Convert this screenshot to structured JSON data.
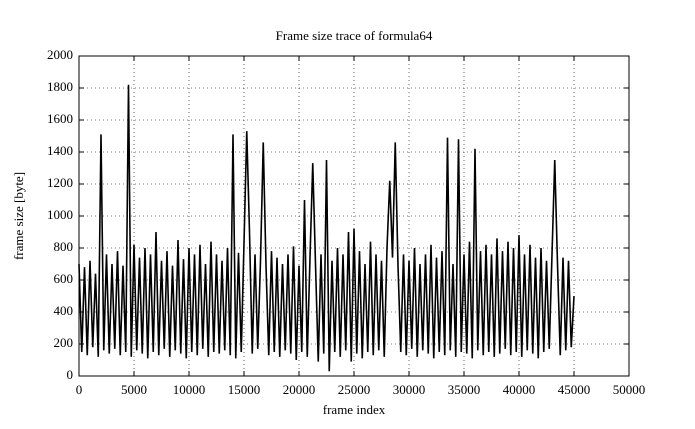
{
  "chart_data": {
    "type": "line",
    "title": "Frame size trace of formula64",
    "x_label": "frame index",
    "y_label": "frame size [byte]",
    "xlim": [
      0,
      50000
    ],
    "ylim": [
      0,
      2000
    ],
    "xticks": [
      0,
      5000,
      10000,
      15000,
      20000,
      25000,
      30000,
      35000,
      40000,
      45000,
      50000
    ],
    "yticks": [
      0,
      200,
      400,
      600,
      800,
      1000,
      1200,
      1400,
      1600,
      1800,
      2000
    ],
    "grid": true,
    "x": [
      0,
      250,
      500,
      750,
      1000,
      1250,
      1500,
      1750,
      2000,
      2250,
      2500,
      2750,
      3000,
      3250,
      3500,
      3750,
      4000,
      4250,
      4500,
      4750,
      5000,
      5250,
      5500,
      5750,
      6000,
      6250,
      6500,
      6750,
      7000,
      7250,
      7500,
      7750,
      8000,
      8250,
      8500,
      8750,
      9000,
      9250,
      9500,
      9750,
      10000,
      10250,
      10500,
      10750,
      11000,
      11250,
      11500,
      11750,
      12000,
      12250,
      12500,
      12750,
      13000,
      13250,
      13500,
      13750,
      14000,
      14250,
      14500,
      14750,
      15000,
      15250,
      15500,
      15750,
      16000,
      16250,
      16500,
      16750,
      17000,
      17250,
      17500,
      17750,
      18000,
      18250,
      18500,
      18750,
      19000,
      19250,
      19500,
      19750,
      20000,
      20250,
      20500,
      20750,
      21000,
      21250,
      21500,
      21750,
      22000,
      22250,
      22500,
      22750,
      23000,
      23250,
      23500,
      23750,
      24000,
      24250,
      24500,
      24750,
      25000,
      25250,
      25500,
      25750,
      26000,
      26250,
      26500,
      26750,
      27000,
      27250,
      27500,
      27750,
      28000,
      28250,
      28500,
      28750,
      29000,
      29250,
      29500,
      29750,
      30000,
      30250,
      30500,
      30750,
      31000,
      31250,
      31500,
      31750,
      32000,
      32250,
      32500,
      32750,
      33000,
      33250,
      33500,
      33750,
      34000,
      34250,
      34500,
      34750,
      35000,
      35250,
      35500,
      35750,
      36000,
      36250,
      36500,
      36750,
      37000,
      37250,
      37500,
      37750,
      38000,
      38250,
      38500,
      38750,
      39000,
      39250,
      39500,
      39750,
      40000,
      40250,
      40500,
      40750,
      41000,
      41250,
      41500,
      41750,
      42000,
      42250,
      42500,
      42750,
      43000,
      43250,
      43500,
      43750,
      44000,
      44250,
      44500,
      44750,
      45000
    ],
    "series": [
      {
        "color": "#000000",
        "values": [
          700,
          150,
          680,
          130,
          720,
          180,
          640,
          120,
          1510,
          160,
          760,
          140,
          700,
          170,
          780,
          130,
          690,
          150,
          1820,
          120,
          820,
          160,
          740,
          140,
          800,
          110,
          760,
          150,
          900,
          130,
          720,
          170,
          780,
          120,
          690,
          160,
          850,
          140,
          730,
          110,
          800,
          150,
          760,
          130,
          820,
          170,
          700,
          120,
          840,
          150,
          760,
          140,
          720,
          160,
          800,
          130,
          1510,
          110,
          770,
          150,
          830,
          1530,
          900,
          140,
          760,
          170,
          720,
          1460,
          690,
          130,
          780,
          150,
          740,
          120,
          700,
          160,
          760,
          140,
          810,
          100,
          690,
          150,
          1100,
          120,
          740,
          1330,
          700,
          90,
          760,
          140,
          1350,
          30,
          720,
          150,
          800,
          120,
          760,
          160,
          900,
          90,
          920,
          140,
          780,
          110,
          700,
          150,
          840,
          130,
          760,
          160,
          720,
          120,
          800,
          1220,
          740,
          1460,
          690,
          150,
          760,
          130,
          720,
          170,
          800,
          120,
          700,
          160,
          760,
          140,
          820,
          110,
          740,
          150,
          780,
          130,
          1490,
          160,
          700,
          120,
          1480,
          150,
          760,
          140,
          840,
          110,
          1420,
          160,
          780,
          130,
          820,
          150,
          760,
          120,
          860,
          140,
          780,
          170,
          840,
          130,
          800,
          150,
          880,
          120,
          760,
          160,
          820,
          140,
          740,
          110,
          800,
          150,
          720,
          170,
          760,
          1350,
          700,
          130,
          740,
          160,
          720,
          180,
          500
        ]
      }
    ]
  }
}
